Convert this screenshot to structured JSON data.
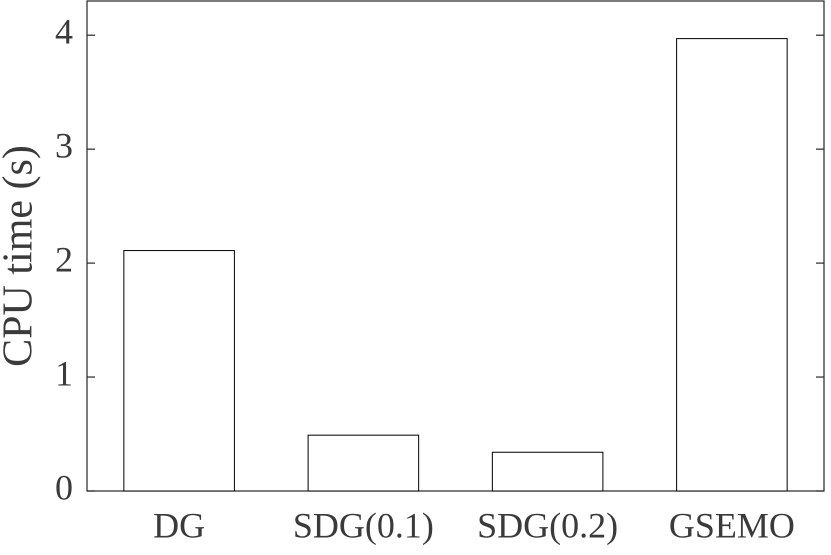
{
  "chart_data": {
    "type": "bar",
    "ylabel": "CPU time (s)",
    "categories": [
      "DG",
      "SDG(0.1)",
      "SDG(0.2)",
      "GSEMO"
    ],
    "values": [
      2.11,
      0.49,
      0.34,
      3.97
    ],
    "color": "#ffffff",
    "edgecolor": "#000000",
    "ylim": [
      0,
      4.3
    ],
    "yticks": [
      0,
      1,
      2,
      3,
      4
    ],
    "grid": false
  }
}
